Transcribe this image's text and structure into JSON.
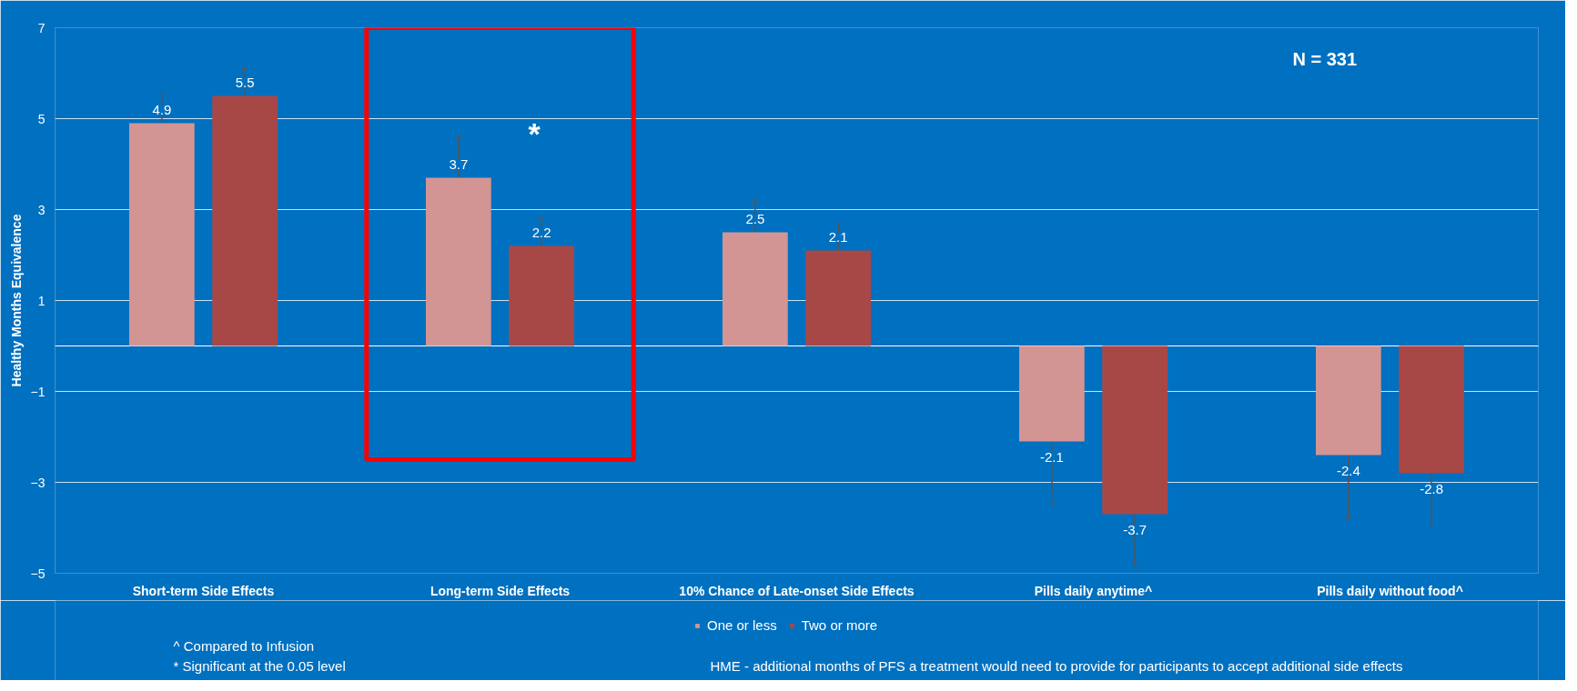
{
  "chart_data": {
    "type": "bar",
    "ylabel": "Healthy Months Equivalence",
    "categories": [
      "Short-term Side Effects",
      "Long-term Side Effects",
      "10% Chance of Late-onset Side Effects",
      "Pills daily anytime^",
      "Pills daily without food^"
    ],
    "series": [
      {
        "name": "One or less",
        "color": "#d39593",
        "values": [
          4.9,
          3.7,
          2.5,
          -2.1,
          -2.4
        ],
        "errors": [
          0.7,
          0.9,
          0.7,
          1.4,
          1.4
        ]
      },
      {
        "name": "Two or more",
        "color": "#a84846",
        "values": [
          5.5,
          2.2,
          2.1,
          -3.7,
          -2.8
        ],
        "errors": [
          0.6,
          0.6,
          0.6,
          1.1,
          1.15
        ]
      }
    ],
    "ylim": [
      -5,
      7
    ],
    "yticks": [
      -5,
      -3,
      -1,
      1,
      3,
      5,
      7
    ],
    "grid": "y",
    "legend": "bottom",
    "data_labels": true,
    "annotations": [
      "N = 331",
      "*",
      "^ Compared to Infusion",
      "* Significant at the 0.05 level",
      "HME - additional months of PFS a treatment would need to provide for participants to accept additional side effects"
    ]
  }
}
